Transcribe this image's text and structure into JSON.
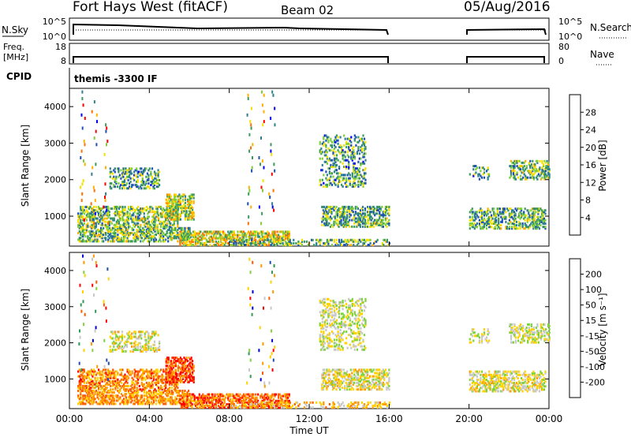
{
  "header": {
    "title": "Fort Hays West (fitACF)",
    "beam": "Beam 02",
    "date": "05/Aug/2016"
  },
  "summary": {
    "nsky_label": "N.Sky",
    "nsky_tick_top": "10^5",
    "nsky_tick_bottom": "10^0",
    "nsearch_label": "N.Search",
    "nsearch_tick_top": "10^5",
    "nsearch_tick_bottom": "10^0",
    "freq_label_1": "Freq.",
    "freq_label_2": "[MHz]",
    "freq_tick_top": "18",
    "freq_tick_bottom": "8",
    "nave_label": "Nave",
    "nave_tick_top": "80",
    "nave_tick_bottom": "0",
    "cpid_label": "CPID",
    "cpid_value": "themis -3300 IF"
  },
  "colors": {
    "power": [
      "#0000ff",
      "#1e4fb5",
      "#2f7f8f",
      "#3c9a5a",
      "#7fcf3a",
      "#f5e000",
      "#ffb000",
      "#ff7000",
      "#ff0000"
    ],
    "velocity": [
      "#ff0000",
      "#ff5a00",
      "#ff9a00",
      "#ffd200",
      "#c8c8c8",
      "#7fd23a",
      "#2f9a50",
      "#1f4fa8",
      "#0000e0"
    ]
  },
  "chart_data": [
    {
      "type": "heatmap",
      "name": "power",
      "ylabel": "Slant Range [km]",
      "y_ticks": [
        "1000",
        "2000",
        "3000",
        "4000"
      ],
      "ylim": [
        180,
        4500
      ],
      "xlim_hours": [
        0,
        24
      ],
      "colorbar_label": "Power [dB]",
      "colorbar_ticks": [
        "4",
        "8",
        "12",
        "16",
        "20",
        "24",
        "28"
      ],
      "colorbar_range": [
        0,
        30
      ]
    },
    {
      "type": "heatmap",
      "name": "velocity",
      "ylabel": "Slant Range [km]",
      "y_ticks": [
        "1000",
        "2000",
        "3000",
        "4000"
      ],
      "ylim": [
        180,
        4500
      ],
      "xlim_hours": [
        0,
        24
      ],
      "colorbar_label": "Velocity [m s⁻¹]",
      "colorbar_ticks": [
        "-200",
        "-100",
        "-50",
        "-15",
        "15",
        "50",
        "100",
        "200"
      ],
      "colorbar_range": [
        -250,
        250
      ]
    }
  ],
  "time_axis": {
    "xlabel": "Time UT",
    "ticks": [
      "00:00",
      "04:00",
      "08:00",
      "12:00",
      "16:00",
      "20:00",
      "00:00"
    ],
    "tick_hours": [
      0,
      4,
      8,
      12,
      16,
      20,
      24
    ],
    "data_gap_hours": [
      16,
      20
    ]
  }
}
